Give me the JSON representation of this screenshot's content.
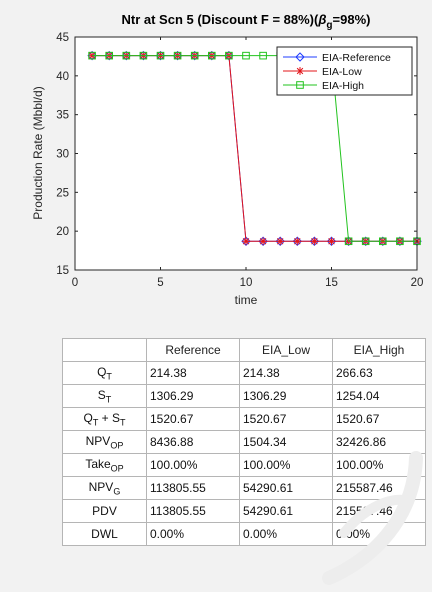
{
  "chart_data": {
    "type": "line",
    "title_main": "Ntr at Scn 5 (Discount F = 88%)(",
    "title_beta": "β",
    "title_beta_sub": "g",
    "title_end": "=98%)",
    "xlabel": "time",
    "ylabel": "Production Rate (Mbbl/d)",
    "xlim": [
      0,
      20
    ],
    "ylim": [
      15,
      45
    ],
    "xticks": [
      0,
      5,
      10,
      15,
      20
    ],
    "yticks": [
      15,
      20,
      25,
      30,
      35,
      40,
      45
    ],
    "grid": false,
    "legend_position": "top-right",
    "x": [
      1,
      2,
      3,
      4,
      5,
      6,
      7,
      8,
      9,
      10,
      11,
      12,
      13,
      14,
      15,
      16,
      17,
      18,
      19,
      20
    ],
    "series": [
      {
        "name": "EIA-Reference",
        "marker": "diamond",
        "color": "#1f3cff",
        "values": [
          42.6,
          42.6,
          42.6,
          42.6,
          42.6,
          42.6,
          42.6,
          42.6,
          42.6,
          18.7,
          18.7,
          18.7,
          18.7,
          18.7,
          18.7,
          18.7,
          18.7,
          18.7,
          18.7,
          18.7
        ]
      },
      {
        "name": "EIA-Low",
        "marker": "asterisk",
        "color": "#e3151a",
        "values": [
          42.6,
          42.6,
          42.6,
          42.6,
          42.6,
          42.6,
          42.6,
          42.6,
          42.6,
          18.7,
          18.7,
          18.7,
          18.7,
          18.7,
          18.7,
          18.7,
          18.7,
          18.7,
          18.7,
          18.7
        ]
      },
      {
        "name": "EIA-High",
        "marker": "square",
        "color": "#22c31e",
        "values": [
          42.6,
          42.6,
          42.6,
          42.6,
          42.6,
          42.6,
          42.6,
          42.6,
          42.6,
          42.6,
          42.6,
          42.6,
          42.6,
          42.6,
          42.6,
          18.7,
          18.7,
          18.7,
          18.7,
          18.7
        ]
      }
    ]
  },
  "table": {
    "headers": [
      "",
      "Reference",
      "EIA_Low",
      "EIA_High"
    ],
    "rows": [
      {
        "label_main": "Q",
        "label_sub": "T",
        "values": [
          "214.38",
          "214.38",
          "266.63"
        ]
      },
      {
        "label_main": "S",
        "label_sub": "T",
        "values": [
          "1306.29",
          "1306.29",
          "1254.04"
        ]
      },
      {
        "label_main": "Q",
        "label_sub": "T",
        "label_mid": " + S",
        "label_sub2": "T",
        "values": [
          "1520.67",
          "1520.67",
          "1520.67"
        ]
      },
      {
        "label_main": "NPV",
        "label_sub": "OP",
        "values": [
          "8436.88",
          "1504.34",
          "32426.86"
        ]
      },
      {
        "label_main": "Take",
        "label_sub": "OP",
        "values": [
          "100.00%",
          "100.00%",
          "100.00%"
        ]
      },
      {
        "label_main": "NPV",
        "label_sub": "G",
        "values": [
          "113805.55",
          "54290.61",
          "215587.46"
        ]
      },
      {
        "label_main": "PDV",
        "label_sub": "",
        "values": [
          "113805.55",
          "54290.61",
          "215587.46"
        ]
      },
      {
        "label_main": "DWL",
        "label_sub": "",
        "values": [
          "0.00%",
          "0.00%",
          "0.00%"
        ]
      }
    ]
  }
}
